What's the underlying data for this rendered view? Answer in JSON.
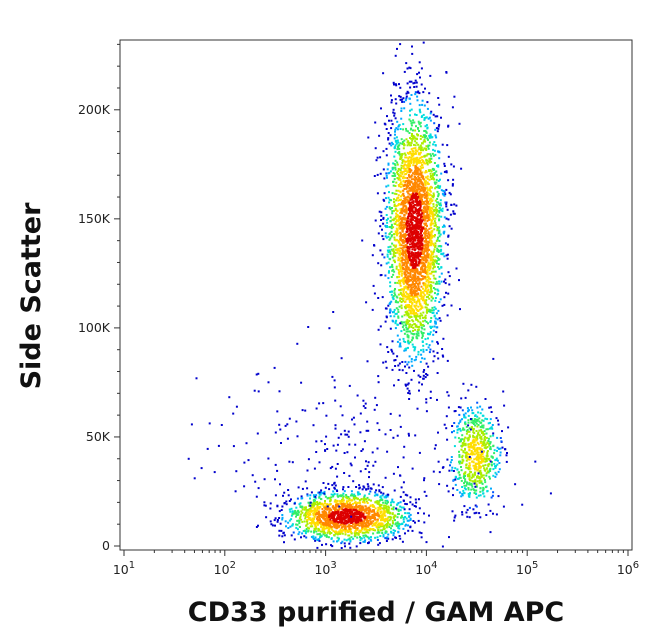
{
  "chart_data": {
    "type": "scatter",
    "subtype": "flow-cytometry-density",
    "title": "",
    "xlabel": "CD33 purified / GAM APC",
    "ylabel": "Side Scatter",
    "x_scale": "log",
    "xlim": [
      10,
      1000000
    ],
    "ylim": [
      0,
      232000
    ],
    "grid": false,
    "x_ticks": [
      {
        "base": "10",
        "exp": "1",
        "value": 10
      },
      {
        "base": "10",
        "exp": "2",
        "value": 100
      },
      {
        "base": "10",
        "exp": "3",
        "value": 1000
      },
      {
        "base": "10",
        "exp": "4",
        "value": 10000
      },
      {
        "base": "10",
        "exp": "5",
        "value": 100000
      },
      {
        "base": "10",
        "exp": "6",
        "value": 1000000
      }
    ],
    "y_ticks": [
      {
        "label": "0",
        "value": 0
      },
      {
        "label": "50K",
        "value": 50000
      },
      {
        "label": "100K",
        "value": 100000
      },
      {
        "label": "150K",
        "value": 150000
      },
      {
        "label": "200K",
        "value": 200000
      }
    ],
    "density_colors": [
      "#0000cc",
      "#0055ff",
      "#00aaff",
      "#00dddd",
      "#33ee66",
      "#aaee00",
      "#ffdd00",
      "#ff8800",
      "#dd0000"
    ],
    "populations": [
      {
        "center_x": 7500,
        "center_y": 145000,
        "density_peak": "high"
      },
      {
        "center_x": 1600,
        "center_y": 14000,
        "density_peak": "high"
      },
      {
        "center_x": 30000,
        "center_y": 42000,
        "density_peak": "medium"
      }
    ]
  }
}
